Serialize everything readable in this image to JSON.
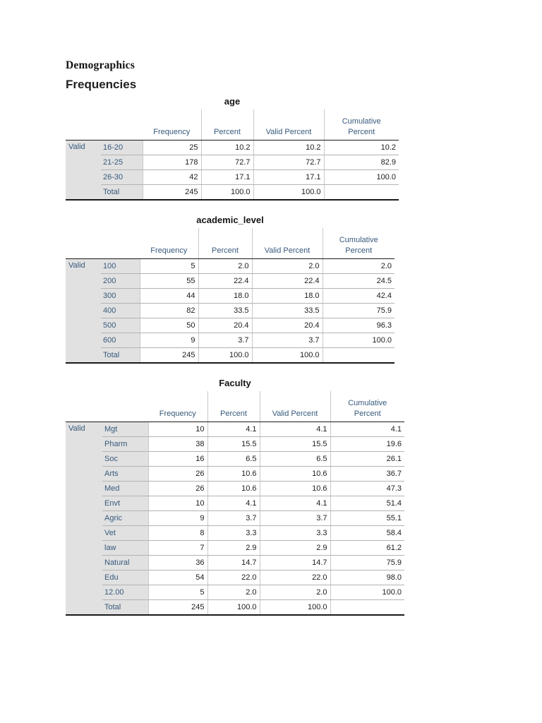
{
  "page": {
    "heading": "Demographics",
    "subheading": "Frequencies"
  },
  "colors": {
    "header-blue": "#36597C",
    "stub-bg": "#E1E1E1",
    "rule-dark": "#1A1A1A",
    "rule-light": "#B3B3B3",
    "rule-vert": "#C9C9C9",
    "value-text": "#1D1D1D"
  },
  "tables": [
    {
      "title": "age",
      "stub": "Valid",
      "columns": [
        [
          "Frequency"
        ],
        [
          "Percent"
        ],
        [
          "Valid Percent"
        ],
        [
          "Cumulative",
          "Percent"
        ]
      ],
      "rows": [
        {
          "label": "16-20",
          "values": [
            "25",
            "10.2",
            "10.2",
            "10.2"
          ]
        },
        {
          "label": "21-25",
          "values": [
            "178",
            "72.7",
            "72.7",
            "82.9"
          ]
        },
        {
          "label": "26-30",
          "values": [
            "42",
            "17.1",
            "17.1",
            "100.0"
          ]
        },
        {
          "label": "Total",
          "values": [
            "245",
            "100.0",
            "100.0",
            ""
          ]
        }
      ]
    },
    {
      "title": "academic_level",
      "stub": "Valid",
      "columns": [
        [
          "Frequency"
        ],
        [
          "Percent"
        ],
        [
          "Valid Percent"
        ],
        [
          "Cumulative",
          "Percent"
        ]
      ],
      "rows": [
        {
          "label": "100",
          "values": [
            "5",
            "2.0",
            "2.0",
            "2.0"
          ]
        },
        {
          "label": "200",
          "values": [
            "55",
            "22.4",
            "22.4",
            "24.5"
          ]
        },
        {
          "label": "300",
          "values": [
            "44",
            "18.0",
            "18.0",
            "42.4"
          ]
        },
        {
          "label": "400",
          "values": [
            "82",
            "33.5",
            "33.5",
            "75.9"
          ]
        },
        {
          "label": "500",
          "values": [
            "50",
            "20.4",
            "20.4",
            "96.3"
          ]
        },
        {
          "label": "600",
          "values": [
            "9",
            "3.7",
            "3.7",
            "100.0"
          ]
        },
        {
          "label": "Total",
          "values": [
            "245",
            "100.0",
            "100.0",
            ""
          ]
        }
      ]
    },
    {
      "title": "Faculty",
      "stub": "Valid",
      "columns": [
        [
          "Frequency"
        ],
        [
          "Percent"
        ],
        [
          "Valid Percent"
        ],
        [
          "Cumulative",
          "Percent"
        ]
      ],
      "rows": [
        {
          "label": "Mgt",
          "values": [
            "10",
            "4.1",
            "4.1",
            "4.1"
          ]
        },
        {
          "label": "Pharm",
          "values": [
            "38",
            "15.5",
            "15.5",
            "19.6"
          ]
        },
        {
          "label": "Soc",
          "values": [
            "16",
            "6.5",
            "6.5",
            "26.1"
          ]
        },
        {
          "label": "Arts",
          "values": [
            "26",
            "10.6",
            "10.6",
            "36.7"
          ]
        },
        {
          "label": "Med",
          "values": [
            "26",
            "10.6",
            "10.6",
            "47.3"
          ]
        },
        {
          "label": "Envt",
          "values": [
            "10",
            "4.1",
            "4.1",
            "51.4"
          ]
        },
        {
          "label": "Agric",
          "values": [
            "9",
            "3.7",
            "3.7",
            "55.1"
          ]
        },
        {
          "label": "Vet",
          "values": [
            "8",
            "3.3",
            "3.3",
            "58.4"
          ]
        },
        {
          "label": "law",
          "values": [
            "7",
            "2.9",
            "2.9",
            "61.2"
          ]
        },
        {
          "label": "Natural",
          "values": [
            "36",
            "14.7",
            "14.7",
            "75.9"
          ]
        },
        {
          "label": "Edu",
          "values": [
            "54",
            "22.0",
            "22.0",
            "98.0"
          ]
        },
        {
          "label": "12.00",
          "values": [
            "5",
            "2.0",
            "2.0",
            "100.0"
          ]
        },
        {
          "label": "Total",
          "values": [
            "245",
            "100.0",
            "100.0",
            ""
          ]
        }
      ]
    }
  ]
}
